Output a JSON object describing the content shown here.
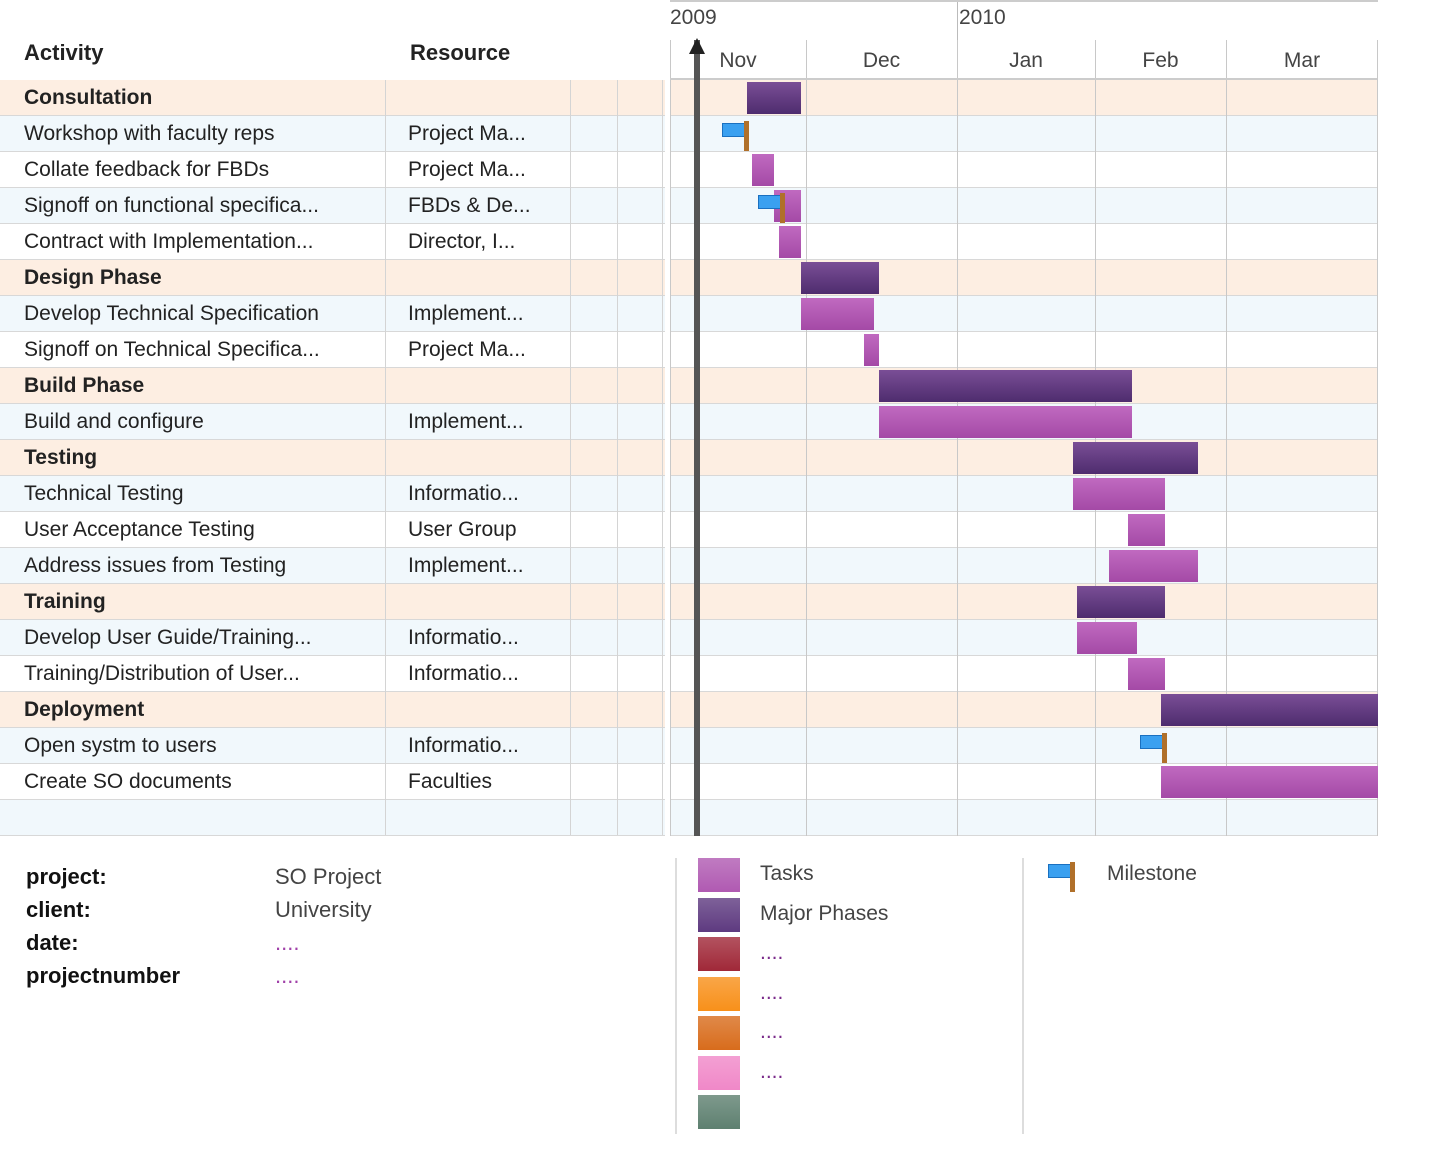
{
  "chart_data": {
    "type": "gantt",
    "columns": {
      "activity": "Activity",
      "resource": "Resource"
    },
    "years": [
      "2009",
      "2010"
    ],
    "months": [
      "Nov",
      "Dec",
      "Jan",
      "Feb",
      "Mar"
    ],
    "today": "2009-11-07",
    "rows": [
      {
        "kind": "phase",
        "activity": "Consultation",
        "resource": "",
        "start": "2009-11-18",
        "end": "2009-11-29"
      },
      {
        "kind": "task",
        "activity": "Workshop with faculty reps",
        "resource": "Project Ma...",
        "milestone": "2009-11-18"
      },
      {
        "kind": "task",
        "activity": "Collate feedback for FBDs",
        "resource": "Project Ma...",
        "start": "2009-11-19",
        "end": "2009-11-23"
      },
      {
        "kind": "task",
        "activity": "Signoff on functional specifica...",
        "resource": "FBDs & De...",
        "start": "2009-11-24",
        "end": "2009-11-29",
        "milestone": "2009-11-26"
      },
      {
        "kind": "task",
        "activity": "Contract with Implementation...",
        "resource": "Director, I...",
        "start": "2009-11-25",
        "end": "2009-11-29"
      },
      {
        "kind": "phase",
        "activity": "Design Phase",
        "resource": "",
        "start": "2009-11-30",
        "end": "2009-12-15"
      },
      {
        "kind": "task",
        "activity": "Develop Technical Specification",
        "resource": "Implement...",
        "start": "2009-11-30",
        "end": "2009-12-14"
      },
      {
        "kind": "task",
        "activity": "Signoff on Technical Specifica...",
        "resource": "Project Ma...",
        "start": "2009-12-13",
        "end": "2009-12-15"
      },
      {
        "kind": "phase",
        "activity": "Build Phase",
        "resource": "",
        "start": "2009-12-16",
        "end": "2010-02-08"
      },
      {
        "kind": "task",
        "activity": "Build and configure",
        "resource": "Implement...",
        "start": "2009-12-16",
        "end": "2010-02-08"
      },
      {
        "kind": "phase",
        "activity": "Testing",
        "resource": "",
        "start": "2010-01-27",
        "end": "2010-02-22"
      },
      {
        "kind": "task",
        "activity": "Technical Testing",
        "resource": "Informatio...",
        "start": "2010-01-27",
        "end": "2010-02-15"
      },
      {
        "kind": "task",
        "activity": "User Acceptance Testing",
        "resource": "User Group",
        "start": "2010-02-08",
        "end": "2010-02-15"
      },
      {
        "kind": "task",
        "activity": "Address issues from Testing",
        "resource": "Implement...",
        "start": "2010-02-04",
        "end": "2010-02-22"
      },
      {
        "kind": "phase",
        "activity": "Training",
        "resource": "",
        "start": "2010-01-28",
        "end": "2010-02-15"
      },
      {
        "kind": "task",
        "activity": "Develop User Guide/Training...",
        "resource": "Informatio...",
        "start": "2010-01-28",
        "end": "2010-02-09"
      },
      {
        "kind": "task",
        "activity": "Training/Distribution of User...",
        "resource": "Informatio...",
        "start": "2010-02-08",
        "end": "2010-02-15"
      },
      {
        "kind": "phase",
        "activity": "Deployment",
        "resource": "",
        "start": "2010-02-15",
        "end": "2010-03-31"
      },
      {
        "kind": "task",
        "activity": "Open systm to users",
        "resource": "Informatio...",
        "milestone": "2010-02-16"
      },
      {
        "kind": "task",
        "activity": "Create SO documents",
        "resource": "Faculties",
        "start": "2010-02-15",
        "end": "2010-03-31"
      },
      {
        "kind": "empty",
        "activity": "",
        "resource": ""
      }
    ],
    "colors": {
      "task": "#b05ab2",
      "phase": "#5e3a80",
      "milestone": "#3aa0f0",
      "today": "#555555"
    }
  },
  "meta": [
    {
      "key": "project:",
      "value": "SO Project"
    },
    {
      "key": "client:",
      "value": "University"
    },
    {
      "key": "date:",
      "value": "...."
    },
    {
      "key": "projectnumber",
      "value": "...."
    }
  ],
  "legend": [
    {
      "label": "Tasks",
      "color": "#b05ab2"
    },
    {
      "label": "Major Phases",
      "color": "#5e3a80"
    },
    {
      "label": "....",
      "color": "#a02838"
    },
    {
      "label": "....",
      "color": "#f8901a"
    },
    {
      "label": "....",
      "color": "#d86c1c"
    },
    {
      "label": "....",
      "color": "#f088c8"
    },
    {
      "label": "",
      "color": "#5e8070"
    }
  ],
  "milestone_legend": {
    "label": "Milestone"
  }
}
